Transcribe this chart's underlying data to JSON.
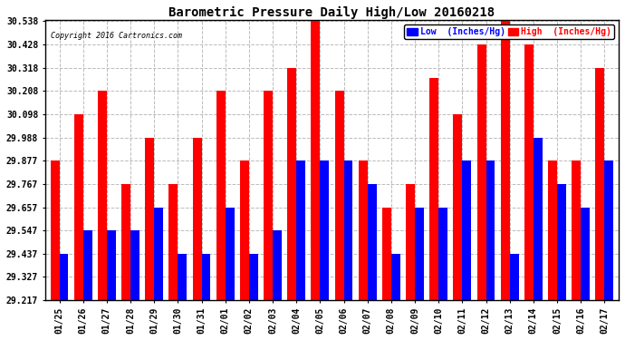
{
  "title": "Barometric Pressure Daily High/Low 20160218",
  "copyright": "Copyright 2016 Cartronics.com",
  "legend_low": "Low  (Inches/Hg)",
  "legend_high": "High  (Inches/Hg)",
  "dates": [
    "01/25",
    "01/26",
    "01/27",
    "01/28",
    "01/29",
    "01/30",
    "01/31",
    "02/01",
    "02/02",
    "02/03",
    "02/04",
    "02/05",
    "02/06",
    "02/07",
    "02/08",
    "02/09",
    "02/10",
    "02/11",
    "02/12",
    "02/13",
    "02/14",
    "02/15",
    "02/16",
    "02/17"
  ],
  "high": [
    29.877,
    30.098,
    30.208,
    29.767,
    29.988,
    29.767,
    29.988,
    30.208,
    29.877,
    30.208,
    30.318,
    30.538,
    30.208,
    29.877,
    29.657,
    29.767,
    30.268,
    30.098,
    30.428,
    30.538,
    30.428,
    29.877,
    29.877,
    30.318
  ],
  "low": [
    29.437,
    29.547,
    29.547,
    29.547,
    29.657,
    29.437,
    29.437,
    29.657,
    29.437,
    29.547,
    29.877,
    29.877,
    29.877,
    29.767,
    29.437,
    29.657,
    29.657,
    29.877,
    29.877,
    29.437,
    29.987,
    29.767,
    29.657,
    29.877
  ],
  "ymin": 29.217,
  "ymax": 30.538,
  "yticks": [
    29.217,
    29.327,
    29.437,
    29.547,
    29.657,
    29.767,
    29.877,
    29.988,
    30.098,
    30.208,
    30.318,
    30.428,
    30.538
  ],
  "bar_width": 0.38,
  "low_color": "#0000ff",
  "high_color": "#ff0000",
  "bg_color": "#ffffff",
  "grid_color": "#bbbbbb",
  "title_color": "#000000",
  "copyright_color": "#000000",
  "legend_low_bg": "#0000ff",
  "legend_high_bg": "#ff0000"
}
